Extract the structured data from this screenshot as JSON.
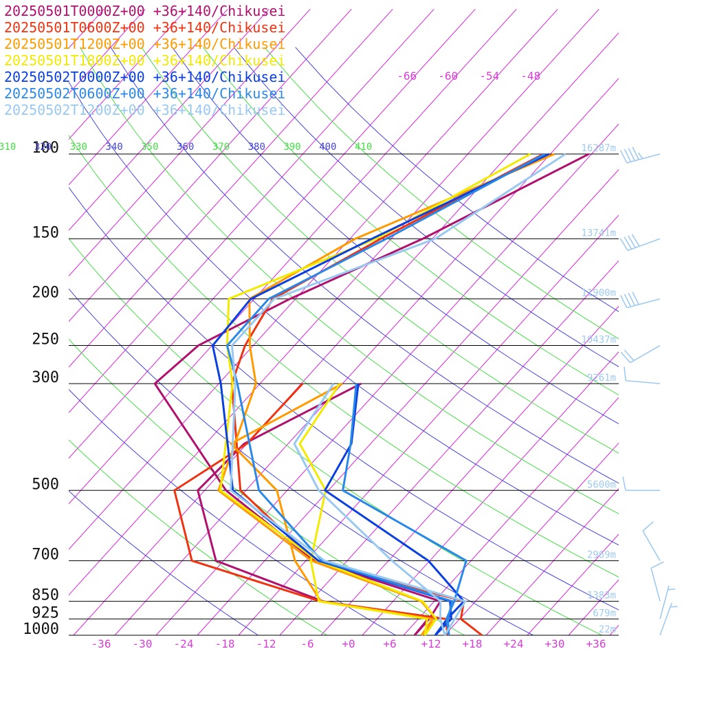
{
  "chart_data": {
    "type": "line",
    "subtype": "skew-t log-p sounding",
    "location": "+36+140/Chikusei",
    "xlabel": "",
    "ylabel": "",
    "pressure_levels": [
      100,
      150,
      200,
      250,
      300,
      500,
      700,
      850,
      925,
      1000
    ],
    "pressure_labels": [
      "100",
      "150",
      "200",
      "250",
      "300",
      "500",
      "700",
      "850",
      "925",
      "1000"
    ],
    "heights": [
      "16287m",
      "13741m",
      "11900m",
      "10437m",
      "9261m",
      "5600m",
      "2969m",
      "1383m",
      "679m",
      "22m"
    ],
    "temperature_ticks": [
      "-36",
      "-30",
      "-24",
      "-18",
      "-12",
      "-6",
      "+0",
      "+6",
      "+12",
      "+18",
      "+24",
      "+30",
      "+36"
    ],
    "upper_temperature_labels": [
      "-66",
      "-60",
      "-54",
      "-48"
    ],
    "theta_labels": [
      {
        "text": "310",
        "color": "#44dd44"
      },
      {
        "text": "320",
        "color": "#4444dd"
      },
      {
        "text": "330",
        "color": "#44dd44"
      },
      {
        "text": "340",
        "color": "#4444dd"
      },
      {
        "text": "350",
        "color": "#44dd44"
      },
      {
        "text": "360",
        "color": "#4444dd"
      },
      {
        "text": "370",
        "color": "#44dd44"
      },
      {
        "text": "380",
        "color": "#4444dd"
      },
      {
        "text": "390",
        "color": "#44dd44"
      },
      {
        "text": "400",
        "color": "#4444dd"
      },
      {
        "text": "410",
        "color": "#44dd44"
      }
    ],
    "xlim": [
      -38,
      38
    ],
    "ylim": [
      1000,
      100
    ],
    "grid": true,
    "legend_position": "top-left",
    "colors": {
      "isotherm": "#dd22dd",
      "theta_odd": "#44dd44",
      "theta_even": "#4444dd",
      "isobar": "#000000",
      "wind_barb": "#9fcaf0"
    },
    "series": [
      {
        "name": "20250501T0000Z+00 +36+140/Chikusei",
        "color": "#b0106e",
        "temperature": [
          [
            1000,
            9.6
          ],
          [
            925,
            9.6
          ],
          [
            850,
            8.9
          ],
          [
            700,
            -14.8
          ],
          [
            500,
            -36.9
          ],
          [
            300,
            -61.3
          ],
          [
            250,
            -60.0
          ],
          [
            200,
            -52.8
          ],
          [
            150,
            -41.4
          ],
          [
            100,
            -28.4
          ]
        ],
        "dewpoint": [
          [
            1000,
            9.6
          ],
          [
            925,
            9.4
          ],
          [
            850,
            -8.2
          ],
          [
            700,
            -29.1
          ],
          [
            500,
            -41.0
          ],
          [
            400,
            -40.4
          ],
          [
            300,
            -31.3
          ]
        ]
      },
      {
        "name": "20250501T0600Z+00 +36+140/Chikusei",
        "color": "#ee3311",
        "temperature": [
          [
            1000,
            19.4
          ],
          [
            925,
            14.2
          ],
          [
            850,
            12.3
          ],
          [
            700,
            -14.8
          ],
          [
            500,
            -34.8
          ],
          [
            300,
            -50.1
          ],
          [
            250,
            -53.2
          ],
          [
            200,
            -55.3
          ],
          [
            150,
            -47.5
          ],
          [
            100,
            -35.0
          ]
        ],
        "dewpoint": [
          [
            1000,
            14.4
          ],
          [
            925,
            12.0
          ],
          [
            850,
            -8.6
          ],
          [
            700,
            -32.6
          ],
          [
            500,
            -44.4
          ],
          [
            400,
            -40.0
          ],
          [
            300,
            -39.8
          ]
        ]
      },
      {
        "name": "20250501T1200Z+00 +36+140/Chikusei",
        "color": "#ff9a00",
        "temperature": [
          [
            1000,
            10.6
          ],
          [
            925,
            10.6
          ],
          [
            850,
            6.1
          ],
          [
            700,
            -15.2
          ],
          [
            500,
            -38.0
          ],
          [
            300,
            -46.6
          ],
          [
            250,
            -52.5
          ],
          [
            200,
            -58.7
          ],
          [
            150,
            -51.2
          ],
          [
            100,
            -33.4
          ]
        ],
        "dewpoint": [
          [
            1000,
            10.6
          ],
          [
            925,
            10.1
          ],
          [
            850,
            -8.5
          ],
          [
            700,
            -17.6
          ],
          [
            500,
            -29.5
          ],
          [
            400,
            -42.3
          ],
          [
            300,
            -34.0
          ]
        ]
      },
      {
        "name": "20250501T1800Z+00 +36+140/Chikusei",
        "color": "#f2ea00",
        "temperature": [
          [
            1000,
            11.1
          ],
          [
            925,
            10.6
          ],
          [
            850,
            6.3
          ],
          [
            700,
            -14.3
          ],
          [
            500,
            -37.7
          ],
          [
            300,
            -50.0
          ],
          [
            250,
            -55.8
          ],
          [
            200,
            -61.7
          ],
          [
            150,
            -48.2
          ],
          [
            100,
            -36.9
          ]
        ],
        "dewpoint": [
          [
            1000,
            11.1
          ],
          [
            925,
            9.3
          ],
          [
            850,
            -8.8
          ],
          [
            700,
            -15.3
          ],
          [
            500,
            -22.4
          ],
          [
            400,
            -32.3
          ],
          [
            300,
            -34.4
          ]
        ]
      },
      {
        "name": "20250502T0000Z+00 +36+140/Chikusei",
        "color": "#0a3fe0",
        "temperature": [
          [
            1000,
            12.6
          ],
          [
            925,
            12.8
          ],
          [
            850,
            10.3
          ],
          [
            700,
            -14.2
          ],
          [
            500,
            -35.9
          ],
          [
            300,
            -51.7
          ],
          [
            250,
            -57.9
          ],
          [
            200,
            -58.5
          ],
          [
            150,
            -48.8
          ],
          [
            100,
            -34.2
          ]
        ],
        "dewpoint": [
          [
            1000,
            12.6
          ],
          [
            925,
            12.2
          ],
          [
            850,
            12.3
          ],
          [
            700,
            1.8
          ],
          [
            500,
            -22.5
          ],
          [
            400,
            -24.8
          ],
          [
            300,
            -31.7
          ]
        ]
      },
      {
        "name": "20250502T0600Z+00 +36+140/Chikusei",
        "color": "#2a88e8",
        "temperature": [
          [
            1000,
            14.6
          ],
          [
            925,
            12.3
          ],
          [
            850,
            10.6
          ],
          [
            700,
            -13.7
          ],
          [
            500,
            -32.1
          ],
          [
            300,
            -49.3
          ],
          [
            250,
            -55.8
          ],
          [
            200,
            -55.9
          ],
          [
            150,
            -46.7
          ],
          [
            100,
            -34.8
          ]
        ],
        "dewpoint": [
          [
            1000,
            14.6
          ],
          [
            925,
            12.1
          ],
          [
            850,
            10.9
          ],
          [
            700,
            7.3
          ],
          [
            500,
            -19.9
          ],
          [
            400,
            -24.9
          ],
          [
            300,
            -32.0
          ]
        ]
      },
      {
        "name": "20250502T1200Z+00 +36+140/Chikusei",
        "color": "#99c8f0",
        "temperature": [
          [
            1000,
            14.0
          ],
          [
            925,
            13.3
          ],
          [
            850,
            12.5
          ],
          [
            700,
            -13.3
          ],
          [
            500,
            -36.2
          ],
          [
            300,
            -49.6
          ],
          [
            250,
            -55.1
          ],
          [
            200,
            -55.1
          ],
          [
            150,
            -39.6
          ],
          [
            100,
            -31.8
          ]
        ],
        "dewpoint": [
          [
            1000,
            14.0
          ],
          [
            925,
            11.2
          ],
          [
            850,
            8.9
          ],
          [
            700,
            -3.5
          ],
          [
            500,
            -23.4
          ],
          [
            400,
            -33.1
          ],
          [
            300,
            -35.3
          ]
        ]
      }
    ],
    "wind": [
      {
        "p": 100,
        "dir": 255,
        "speed": 45
      },
      {
        "p": 150,
        "dir": 250,
        "speed": 40
      },
      {
        "p": 200,
        "dir": 255,
        "speed": 40
      },
      {
        "p": 250,
        "dir": 240,
        "speed": 20
      },
      {
        "p": 300,
        "dir": 275,
        "speed": 10
      },
      {
        "p": 500,
        "dir": 270,
        "speed": 10
      },
      {
        "p": 700,
        "dir": 330,
        "speed": 10
      },
      {
        "p": 850,
        "dir": 345,
        "speed": 10
      },
      {
        "p": 925,
        "dir": 15,
        "speed": 5
      },
      {
        "p": 1000,
        "dir": 20,
        "speed": 5
      }
    ]
  }
}
